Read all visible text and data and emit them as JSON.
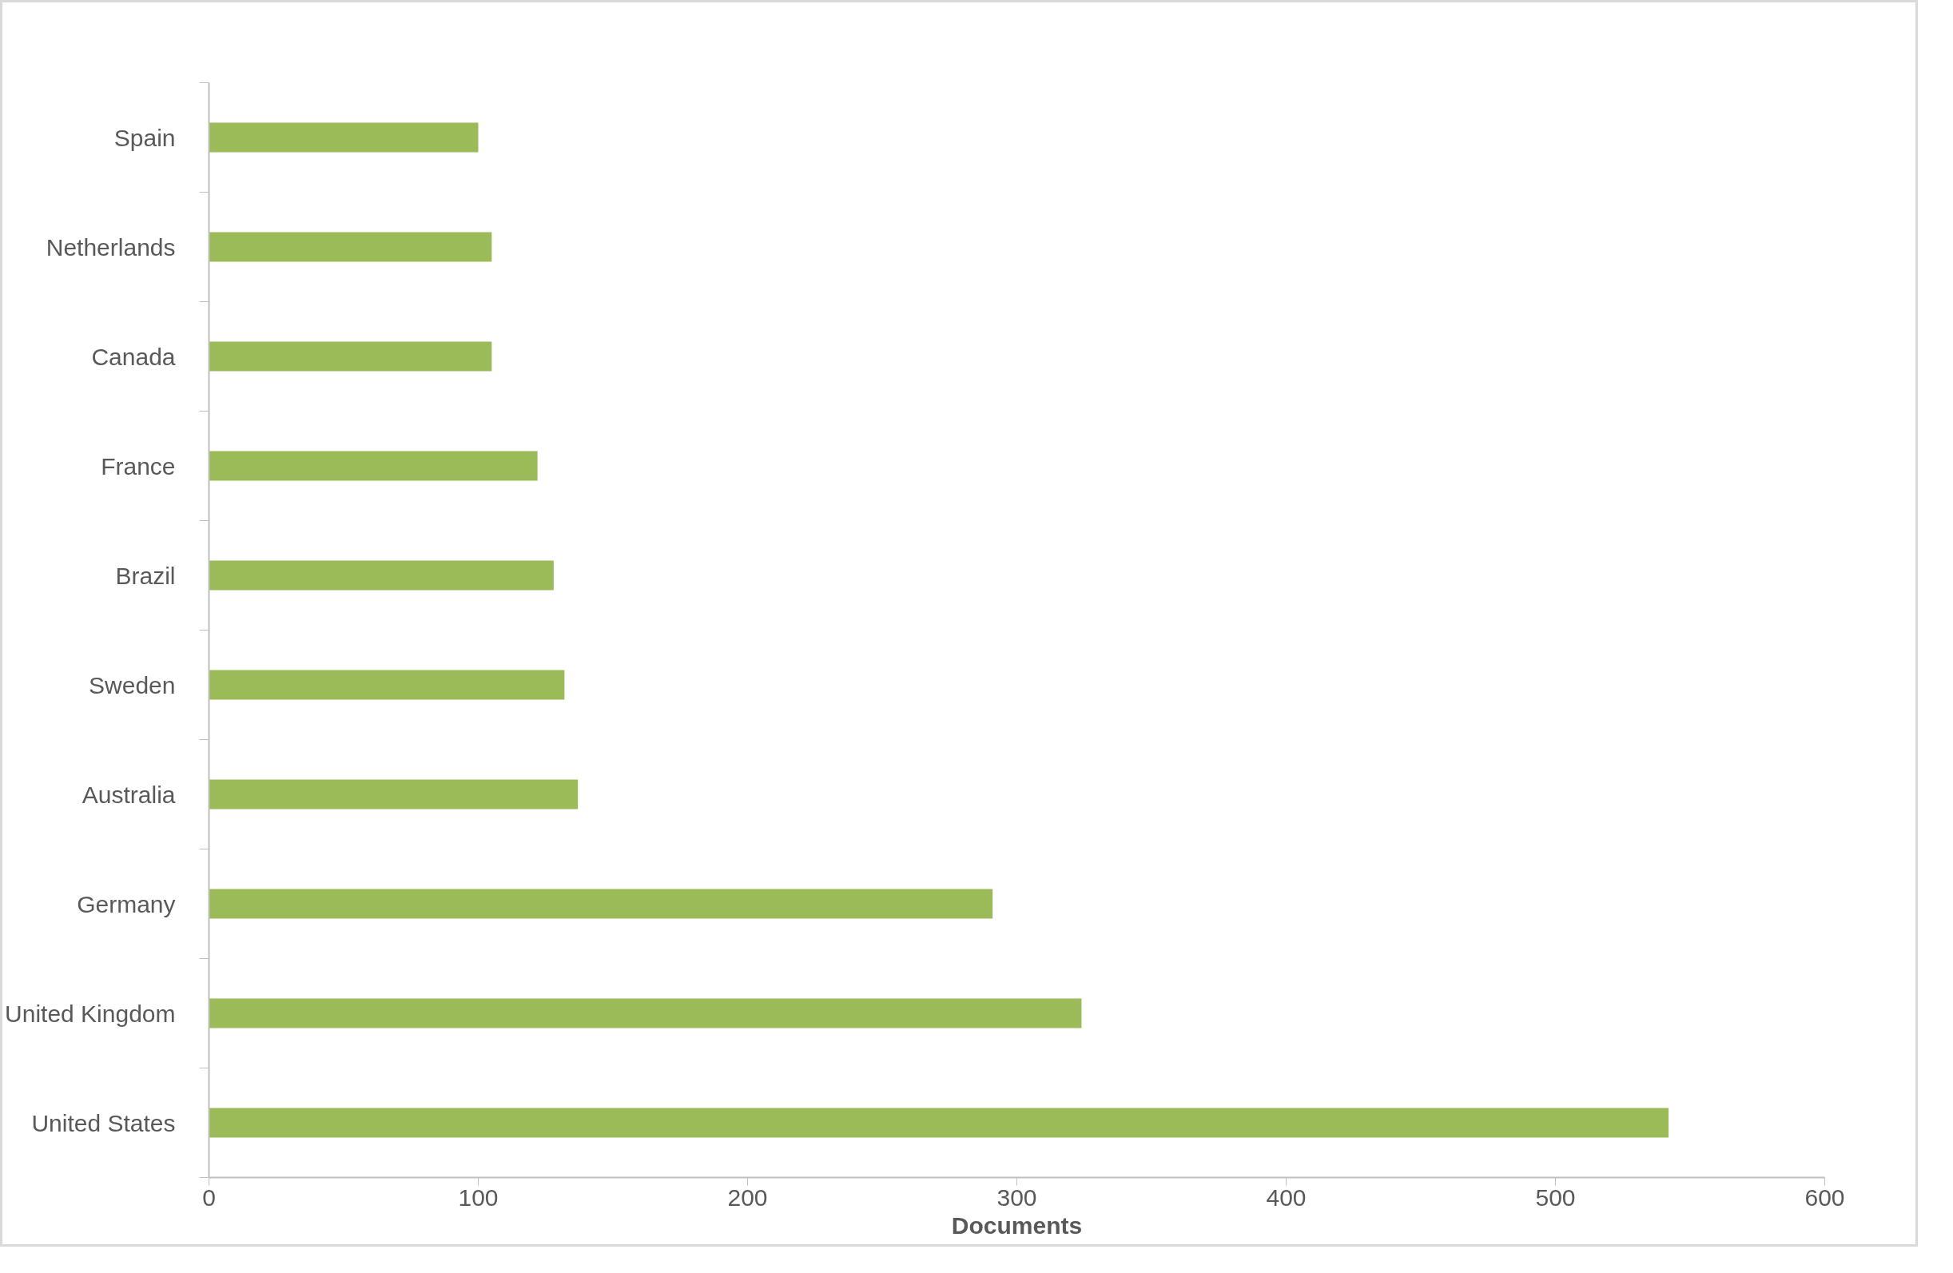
{
  "chart_data": {
    "type": "bar",
    "orientation": "horizontal",
    "xlabel": "Documents",
    "categories": [
      "Spain",
      "Netherlands",
      "Canada",
      "France",
      "Brazil",
      "Sweden",
      "Australia",
      "Germany",
      "United Kingdom",
      "United States"
    ],
    "values": [
      100,
      105,
      105,
      122,
      128,
      132,
      137,
      291,
      324,
      542
    ],
    "color": "#9bbb59",
    "xlim": [
      0,
      600
    ],
    "xticks": [
      0,
      100,
      200,
      300,
      400,
      500,
      600
    ],
    "grid": false
  }
}
